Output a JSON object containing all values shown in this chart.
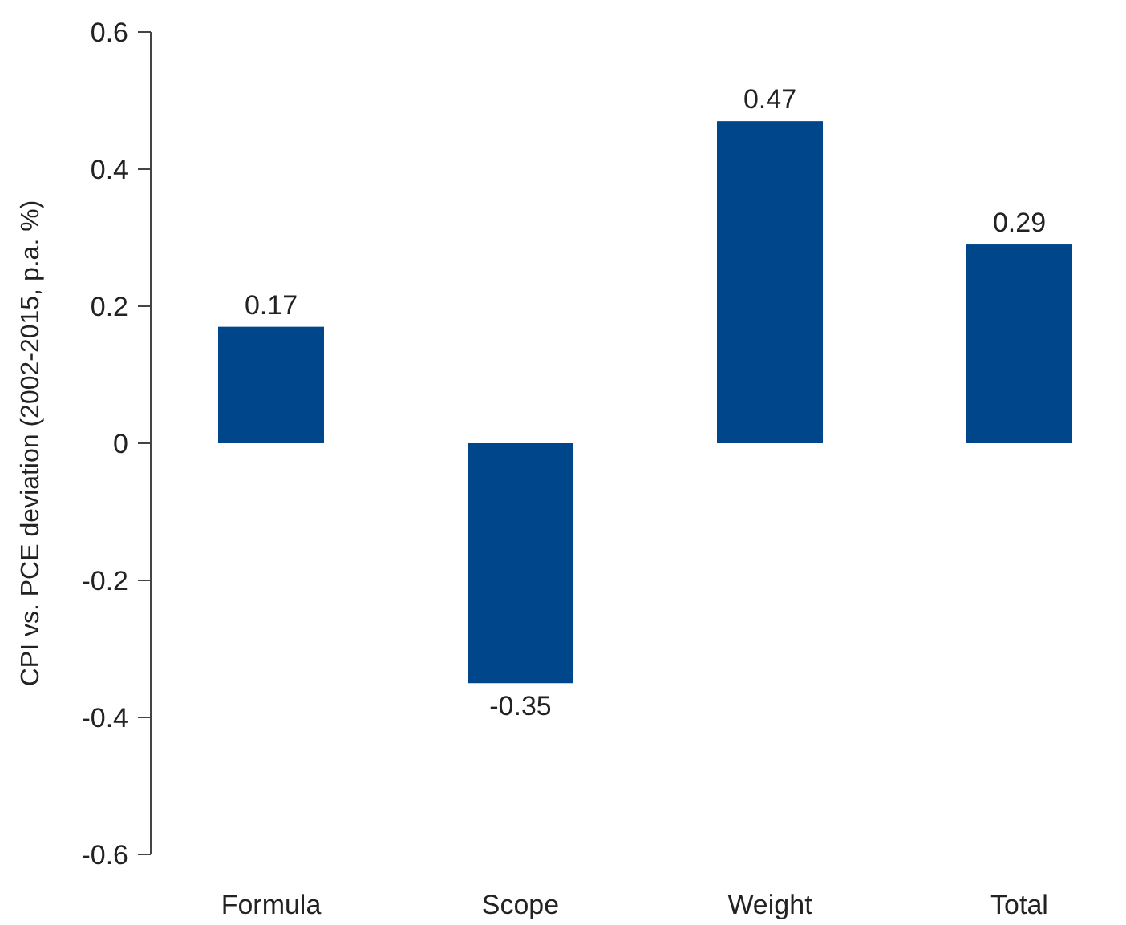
{
  "chart_data": {
    "type": "bar",
    "ylabel": "CPI vs. PCE deviation (2002-2015, p.a. %)",
    "categories": [
      "Formula",
      "Scope",
      "Weight",
      "Total"
    ],
    "values": [
      0.17,
      -0.35,
      0.47,
      0.29
    ],
    "color": "#00468b",
    "data_labels": true,
    "ylim": [
      -0.6,
      0.6
    ],
    "yticks": [
      -0.6,
      -0.4,
      -0.2,
      0,
      0.2,
      0.4,
      0.6
    ]
  }
}
